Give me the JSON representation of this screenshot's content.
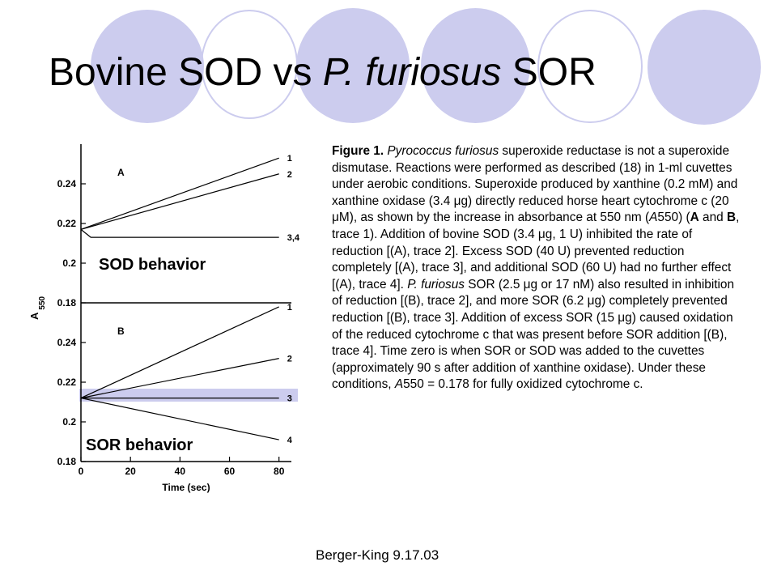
{
  "slide": {
    "title_part1": "Bovine SOD vs ",
    "title_italic": "P. furiosus",
    "title_part2": " SOR",
    "footer": "Berger-King 9.17.03",
    "decor_color": "#ccccee"
  },
  "caption": [
    {
      "t": "Figure 1. ",
      "s": "b"
    },
    {
      "t": "Pyrococcus furiosus",
      "s": "i"
    },
    {
      "t": " superoxide reductase is not a superoxide dismutase. Reactions were performed as described (18) in 1-ml cuvettes under aerobic conditions. Superoxide produced by xanthine (0.2 mM) and xanthine oxidase (3.4 μg) directly reduced horse heart cytochrome c (20 μM), as shown by the increase in absorbance at 550 nm (",
      "s": ""
    },
    {
      "t": "A",
      "s": "i"
    },
    {
      "t": "550) (",
      "s": ""
    },
    {
      "t": "A",
      "s": "b"
    },
    {
      "t": " and ",
      "s": ""
    },
    {
      "t": "B",
      "s": "b"
    },
    {
      "t": ", trace 1). Addition of bovine SOD (3.4 μg, 1 U) inhibited the rate of reduction [(A), trace 2]. Excess SOD (40 U) prevented reduction completely [(A), trace 3], and additional SOD (60 U) had no further effect [(A), trace 4]. ",
      "s": ""
    },
    {
      "t": "P. furiosus",
      "s": "i"
    },
    {
      "t": " SOR (2.5 μg or 17 nM) also resulted in inhibition of reduction [(B), trace 2], and more SOR (6.2 μg) completely prevented reduction [(B), trace 3]. Addition of excess SOR (15 μg) caused oxidation of the reduced cytochrome c that was present before SOR addition [(B), trace 4]. Time zero is when SOR or SOD was added to the cuvettes (approximately 90 s after addition of xanthine oxidase). Under these conditions, ",
      "s": ""
    },
    {
      "t": "A",
      "s": "i"
    },
    {
      "t": "550 = 0.178 for fully oxidized cytochrome c.",
      "s": ""
    }
  ],
  "figure": {
    "y_axis_label": "A",
    "y_axis_subscript": "550",
    "x_axis_label": "Time (sec)",
    "sod_label": "SOD behavior",
    "sor_label": "SOR behavior",
    "highlight_color": "#ccccee"
  },
  "chart_data": [
    {
      "type": "line",
      "panel_label": "A",
      "xlim": [
        0,
        85
      ],
      "ylim": [
        0.18,
        0.26
      ],
      "yticks": [
        "0.24",
        "0.22",
        "0.2",
        "0.18"
      ],
      "series": [
        {
          "name": "1",
          "x": [
            0,
            80
          ],
          "y": [
            0.217,
            0.253
          ]
        },
        {
          "name": "2",
          "x": [
            0,
            80
          ],
          "y": [
            0.217,
            0.245
          ]
        },
        {
          "name": "3,4",
          "x": [
            0,
            4,
            80
          ],
          "y": [
            0.217,
            0.213,
            0.213
          ]
        }
      ]
    },
    {
      "type": "line",
      "panel_label": "B",
      "xlim": [
        0,
        85
      ],
      "ylim": [
        0.18,
        0.26
      ],
      "xticks": [
        "0",
        "20",
        "40",
        "60",
        "80"
      ],
      "yticks": [
        "0.24",
        "0.22",
        "0.2",
        "0.18"
      ],
      "series": [
        {
          "name": "1",
          "x": [
            0,
            80
          ],
          "y": [
            0.212,
            0.258
          ]
        },
        {
          "name": "2",
          "x": [
            0,
            80
          ],
          "y": [
            0.212,
            0.232
          ]
        },
        {
          "name": "3",
          "x": [
            0,
            80
          ],
          "y": [
            0.212,
            0.212
          ]
        },
        {
          "name": "4",
          "x": [
            0,
            80
          ],
          "y": [
            0.212,
            0.191
          ]
        }
      ]
    }
  ]
}
